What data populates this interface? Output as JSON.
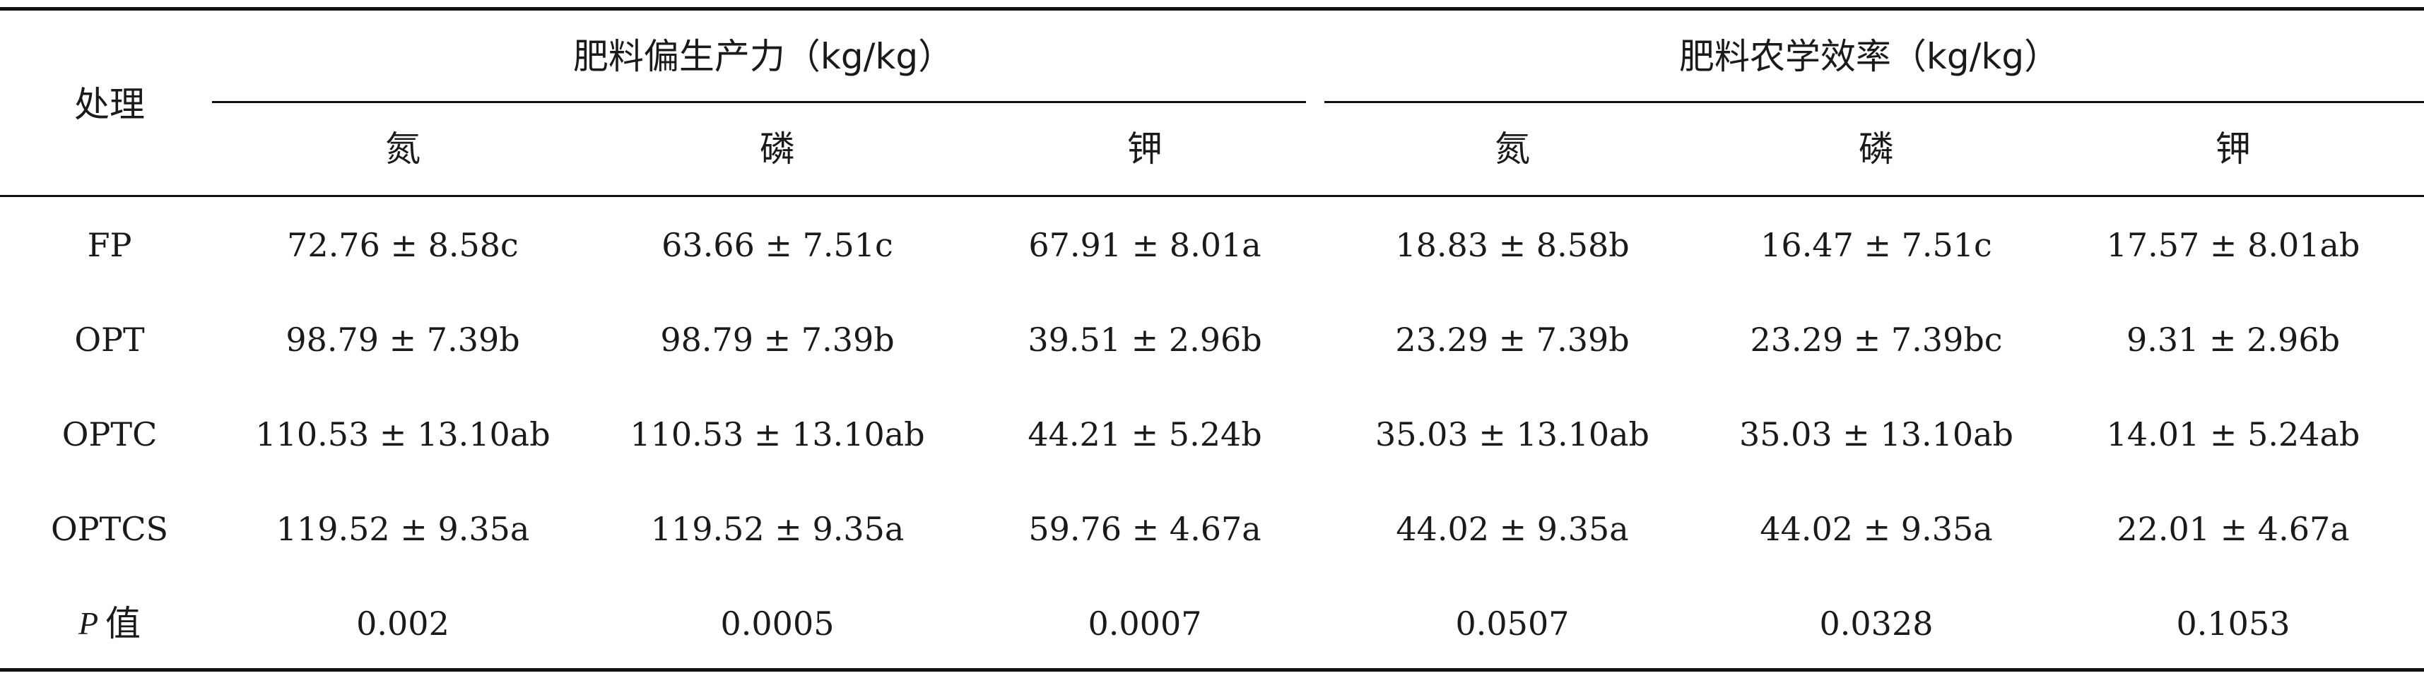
{
  "table": {
    "header": {
      "treatment": "处理",
      "group_pfp": "肥料偏生产力（kg/kg）",
      "group_ae": "肥料农学效率（kg/kg）",
      "sub": [
        "氮",
        "磷",
        "钾",
        "氮",
        "磷",
        "钾"
      ]
    },
    "rows": [
      {
        "label": "FP",
        "cells": [
          "72.76 ± 8.58c",
          "63.66 ± 7.51c",
          "67.91 ± 8.01a",
          "18.83 ± 8.58b",
          "16.47 ± 7.51c",
          "17.57 ± 8.01ab"
        ]
      },
      {
        "label": "OPT",
        "cells": [
          "98.79 ± 7.39b",
          "98.79 ± 7.39b",
          "39.51 ± 2.96b",
          "23.29 ± 7.39b",
          "23.29 ± 7.39bc",
          "9.31 ± 2.96b"
        ]
      },
      {
        "label": "OPTC",
        "cells": [
          "110.53 ± 13.10ab",
          "110.53 ± 13.10ab",
          "44.21 ± 5.24b",
          "35.03 ± 13.10ab",
          "35.03 ± 13.10ab",
          "14.01 ± 5.24ab"
        ]
      },
      {
        "label": "OPTCS",
        "cells": [
          "119.52 ± 9.35a",
          "119.52 ± 9.35a",
          "59.76 ± 4.67a",
          "44.02 ± 9.35a",
          "44.02 ± 9.35a",
          "22.01 ± 4.67a"
        ]
      }
    ],
    "p_row": {
      "label_italic": "P",
      "label_suffix": "值",
      "cells": [
        "0.002",
        "0.0005",
        "0.0007",
        "0.0507",
        "0.0328",
        "0.1053"
      ]
    }
  }
}
